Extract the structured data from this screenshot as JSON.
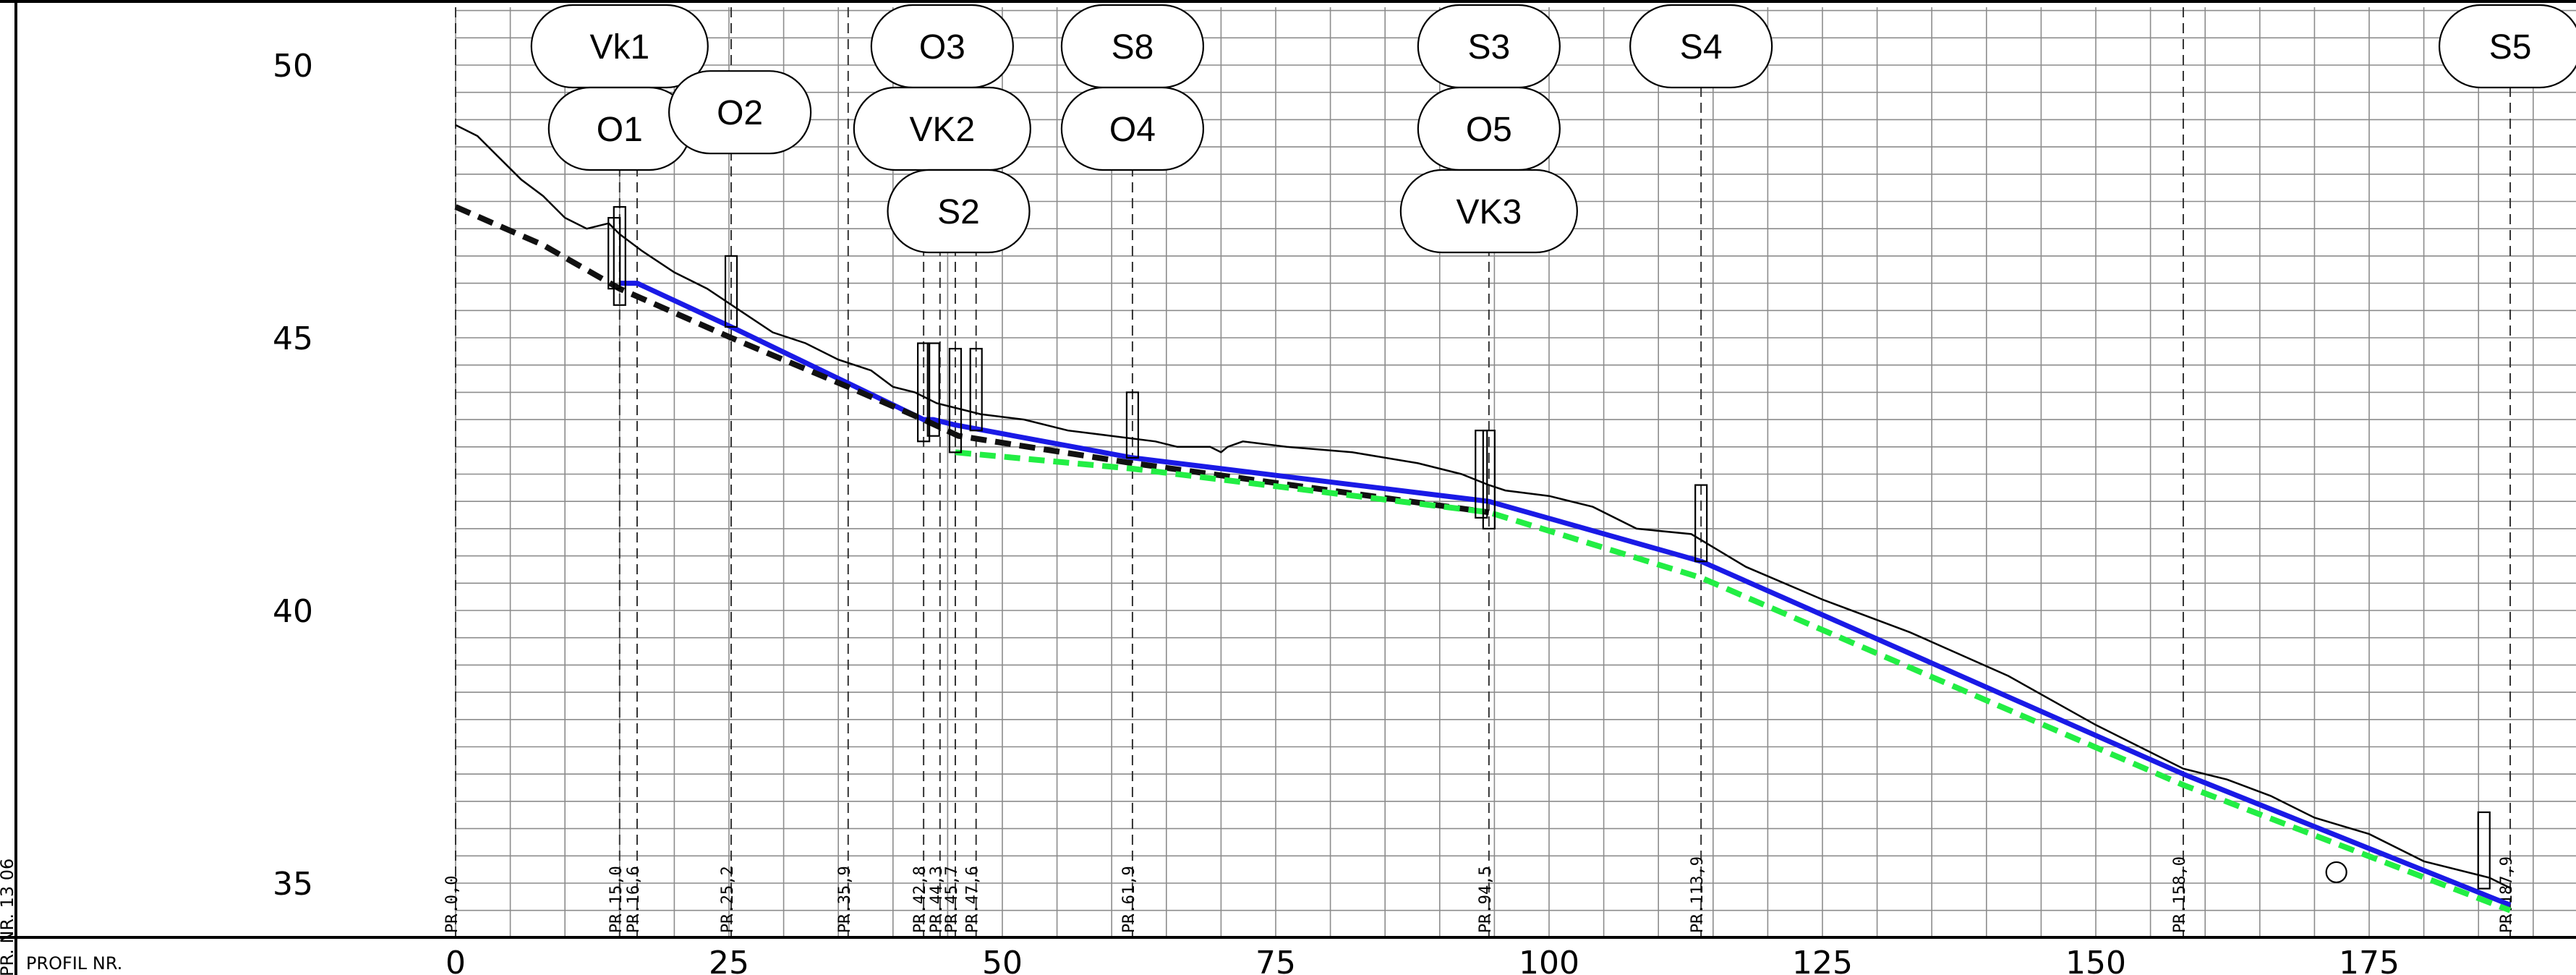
{
  "chart_data": {
    "type": "line",
    "x_ticks": [
      0,
      25,
      50,
      75,
      100,
      125,
      150,
      175
    ],
    "y_ticks": [
      35,
      40,
      45,
      50
    ],
    "xlim": [
      0,
      193
    ],
    "ylim": [
      34,
      51
    ],
    "grid": true,
    "footer_label": "PROFIL NR.",
    "left_edge_fragment": "PR. NR. 13 06",
    "terrain_line": {
      "color": "#000000",
      "points": [
        [
          0,
          48.9
        ],
        [
          2,
          48.7
        ],
        [
          4,
          48.3
        ],
        [
          6,
          47.9
        ],
        [
          8,
          47.6
        ],
        [
          10,
          47.2
        ],
        [
          12,
          47.0
        ],
        [
          14,
          47.1
        ],
        [
          15,
          46.9
        ],
        [
          17,
          46.6
        ],
        [
          20,
          46.2
        ],
        [
          23,
          45.9
        ],
        [
          26,
          45.5
        ],
        [
          29,
          45.1
        ],
        [
          32,
          44.9
        ],
        [
          35,
          44.6
        ],
        [
          38,
          44.4
        ],
        [
          40,
          44.1
        ],
        [
          42,
          44.0
        ],
        [
          44,
          43.8
        ],
        [
          46,
          43.7
        ],
        [
          48,
          43.6
        ],
        [
          52,
          43.5
        ],
        [
          56,
          43.3
        ],
        [
          60,
          43.2
        ],
        [
          64,
          43.1
        ],
        [
          66,
          43.0
        ],
        [
          69,
          43.0
        ],
        [
          70,
          42.9
        ],
        [
          70.6,
          43.0
        ],
        [
          72,
          43.1
        ],
        [
          76,
          43.0
        ],
        [
          82,
          42.9
        ],
        [
          88,
          42.7
        ],
        [
          92,
          42.5
        ],
        [
          94.5,
          42.3
        ],
        [
          96,
          42.2
        ],
        [
          100,
          42.1
        ],
        [
          104,
          41.9
        ],
        [
          108,
          41.5
        ],
        [
          113,
          41.4
        ],
        [
          118,
          40.8
        ],
        [
          125,
          40.2
        ],
        [
          133,
          39.6
        ],
        [
          142,
          38.8
        ],
        [
          150,
          37.9
        ],
        [
          158,
          37.1
        ],
        [
          162,
          36.9
        ],
        [
          166,
          36.6
        ],
        [
          170,
          36.2
        ],
        [
          175,
          35.9
        ],
        [
          180,
          35.4
        ],
        [
          186,
          35.1
        ],
        [
          188,
          34.9
        ]
      ]
    },
    "series": [
      {
        "style": "solid",
        "color": "#1a1ae6",
        "points": [
          [
            15.0,
            46.0
          ],
          [
            16.6,
            46.0
          ],
          [
            25.2,
            45.2
          ],
          [
            42.8,
            43.5
          ],
          [
            43.7,
            43.5
          ],
          [
            45.7,
            43.4
          ],
          [
            61.9,
            42.8
          ],
          [
            94.5,
            42.0
          ],
          [
            113.9,
            40.9
          ],
          [
            158.0,
            37.0
          ],
          [
            187.9,
            34.6
          ]
        ]
      },
      {
        "style": "dashed",
        "color": "#111111",
        "points": [
          [
            0,
            47.4
          ],
          [
            8,
            46.7
          ],
          [
            15.0,
            45.9
          ],
          [
            25.2,
            45.0
          ],
          [
            35.9,
            44.1
          ],
          [
            42.8,
            43.5
          ],
          [
            46.0,
            43.2
          ],
          [
            61.9,
            42.7
          ],
          [
            94.5,
            41.8
          ]
        ]
      },
      {
        "style": "dashed",
        "color": "#22ee44",
        "points": [
          [
            45.7,
            42.9
          ],
          [
            61.9,
            42.6
          ],
          [
            94.5,
            41.8
          ],
          [
            113.9,
            40.6
          ],
          [
            158.0,
            36.8
          ],
          [
            187.9,
            34.5
          ]
        ]
      }
    ],
    "markers": [
      {
        "x": 14.5,
        "y_top": 47.2,
        "y_bottom": 45.9
      },
      {
        "x": 15.0,
        "y_top": 47.4,
        "y_bottom": 45.6
      },
      {
        "x": 25.2,
        "y_top": 46.5,
        "y_bottom": 45.2
      },
      {
        "x": 42.8,
        "y_top": 44.9,
        "y_bottom": 43.1
      },
      {
        "x": 43.7,
        "y_top": 44.9,
        "y_bottom": 43.2
      },
      {
        "x": 45.7,
        "y_top": 44.8,
        "y_bottom": 42.9
      },
      {
        "x": 47.6,
        "y_top": 44.8,
        "y_bottom": 43.3
      },
      {
        "x": 61.9,
        "y_top": 44.0,
        "y_bottom": 42.8
      },
      {
        "x": 93.8,
        "y_top": 43.3,
        "y_bottom": 41.7
      },
      {
        "x": 94.5,
        "y_top": 43.3,
        "y_bottom": 41.5
      },
      {
        "x": 113.9,
        "y_top": 42.3,
        "y_bottom": 40.9
      },
      {
        "x": 185.5,
        "y_top": 36.3,
        "y_bottom": 34.9
      }
    ],
    "circle_marker": {
      "x": 172,
      "y": 35.2
    },
    "stations": [
      {
        "x": 0.0,
        "label": "PR.0,0"
      },
      {
        "x": 15.0,
        "label": "PR.15,0"
      },
      {
        "x": 16.6,
        "label": "PR.16,6"
      },
      {
        "x": 25.2,
        "label": "PR.25,2"
      },
      {
        "x": 35.9,
        "label": "PR.35,9"
      },
      {
        "x": 42.8,
        "label": "PR.42,8"
      },
      {
        "x": 44.3,
        "label": "PR.44,3"
      },
      {
        "x": 45.7,
        "label": "PR.45,7"
      },
      {
        "x": 47.6,
        "label": "PR.47,6"
      },
      {
        "x": 61.9,
        "label": "PR.61,9"
      },
      {
        "x": 94.5,
        "label": "PR.94,5"
      },
      {
        "x": 113.9,
        "label": "PR.113,9"
      },
      {
        "x": 158.0,
        "label": "PR.158,0"
      },
      {
        "x": 187.9,
        "label": "PR.187,9"
      }
    ],
    "nodes": [
      {
        "label": "Vk1",
        "x": 15.0,
        "row": 0
      },
      {
        "label": "O1",
        "x": 15.0,
        "row": 1
      },
      {
        "label": "O2",
        "x": 26.0,
        "row": 0.8
      },
      {
        "label": "O3",
        "x": 44.5,
        "row": 0
      },
      {
        "label": "VK2",
        "x": 44.5,
        "row": 1
      },
      {
        "label": "S2",
        "x": 46.0,
        "row": 2
      },
      {
        "label": "S8",
        "x": 61.9,
        "row": 0
      },
      {
        "label": "O4",
        "x": 61.9,
        "row": 1
      },
      {
        "label": "S3",
        "x": 94.5,
        "row": 0
      },
      {
        "label": "O5",
        "x": 94.5,
        "row": 1
      },
      {
        "label": "VK3",
        "x": 94.5,
        "row": 2
      },
      {
        "label": "S4",
        "x": 113.9,
        "row": 0
      },
      {
        "label": "S5",
        "x": 187.9,
        "row": 0
      }
    ]
  }
}
